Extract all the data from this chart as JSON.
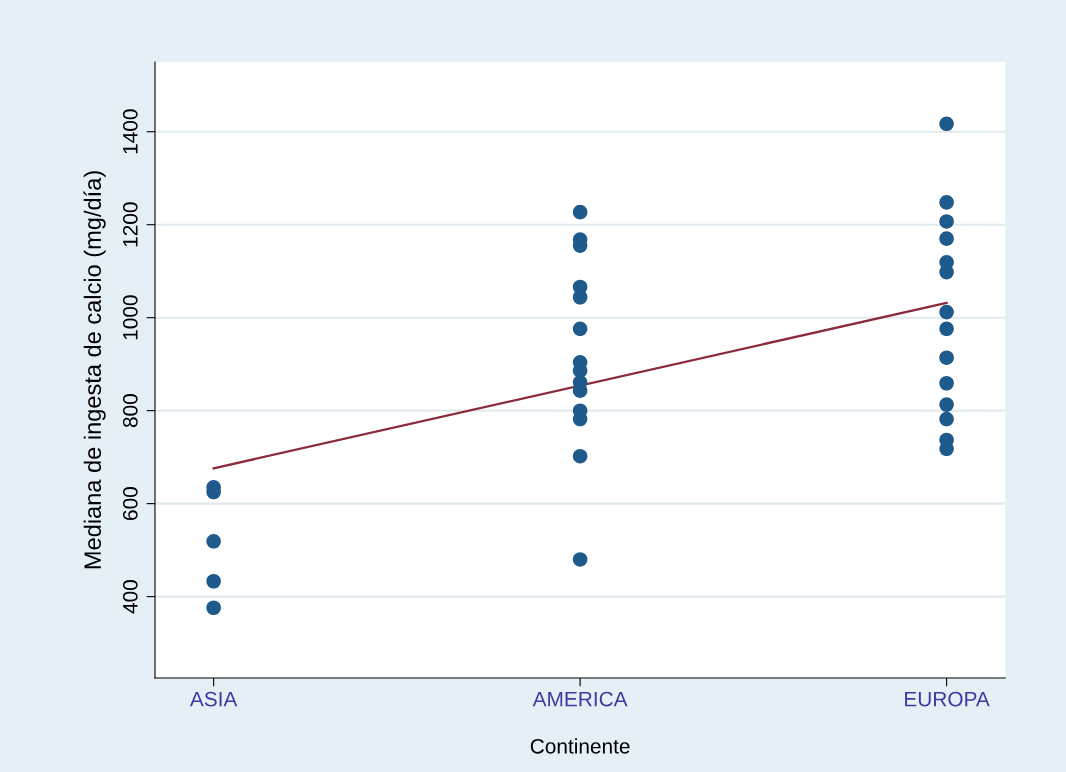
{
  "chart_data": {
    "type": "scatter",
    "xlabel": "Continente",
    "ylabel": "Mediana de ingesta de calcio (mg/día)",
    "categories": [
      "ASIA",
      "AMERICA",
      "EUROPA"
    ],
    "series": [
      {
        "marker": "circle",
        "color": "#1f5a8c",
        "x": [
          "ASIA",
          "ASIA",
          "ASIA",
          "ASIA",
          "ASIA",
          "AMERICA",
          "AMERICA",
          "AMERICA",
          "AMERICA",
          "AMERICA",
          "AMERICA",
          "AMERICA",
          "AMERICA",
          "AMERICA",
          "AMERICA",
          "AMERICA",
          "AMERICA",
          "AMERICA",
          "AMERICA",
          "EUROPA",
          "EUROPA",
          "EUROPA",
          "EUROPA",
          "EUROPA",
          "EUROPA",
          "EUROPA",
          "EUROPA",
          "EUROPA",
          "EUROPA",
          "EUROPA",
          "EUROPA",
          "EUROPA",
          "EUROPA"
        ],
        "values": [
          635,
          625,
          519,
          433,
          376,
          1227,
          1168,
          1155,
          1066,
          1044,
          976,
          904,
          886,
          861,
          843,
          800,
          782,
          702,
          480,
          1417,
          1248,
          1207,
          1170,
          1119,
          1098,
          1012,
          976,
          914,
          859,
          813,
          782,
          737,
          718
        ]
      },
      {
        "type": "line",
        "color": "#8b2a3a",
        "x": [
          "ASIA",
          "EUROPA"
        ],
        "values": [
          676,
          1032
        ]
      }
    ],
    "ylim": [
      225,
      1550
    ],
    "yticks": [
      400,
      600,
      800,
      1000,
      1200,
      1400
    ],
    "grid": "y"
  }
}
